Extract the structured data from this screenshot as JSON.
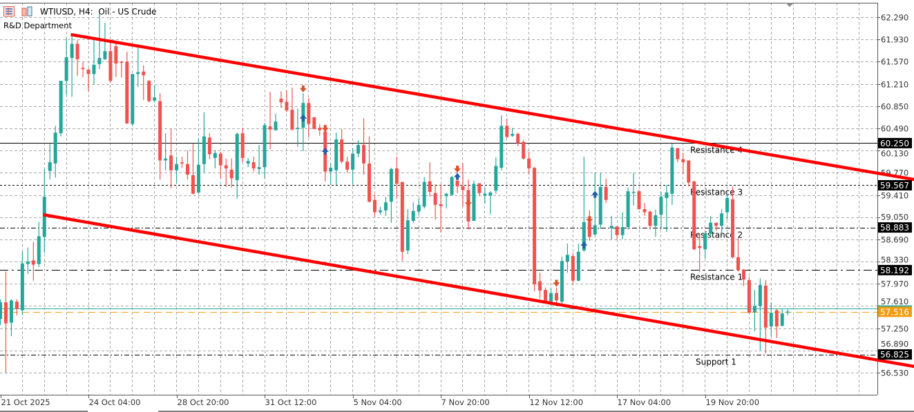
{
  "header": {
    "title": "WTIUSD, H4:  Oil - US Crude",
    "subtitle": "R&D Department",
    "icons": [
      "market-watch-icon",
      "one-click-trading-icon"
    ]
  },
  "colors": {
    "bull": "#26a69a",
    "bear": "#ef5350",
    "trendline": "#ff0000",
    "bid_line": "#f39c12",
    "ask_line": "#26a69a",
    "signal_buy": "#1f5fa8",
    "signal_sell": "#e0502a"
  },
  "chart_data": {
    "type": "candlestick",
    "symbol": "WTIUSD",
    "timeframe": "H4",
    "ylim": [
      56.35,
      62.5
    ],
    "grid": true,
    "y_ticks": [
      "62.290",
      "61.930",
      "61.570",
      "61.210",
      "60.850",
      "60.490",
      "60.130",
      "59.770",
      "59.410",
      "59.050",
      "58.690",
      "58.330",
      "57.970",
      "57.610",
      "57.250",
      "56.890",
      "56.530"
    ],
    "x_tick_labels": [
      "21 Oct 2025",
      "24 Oct 04:00",
      "28 Oct 20:00",
      "31 Oct 12:00",
      "5 Nov 04:00",
      "7 Nov 20:00",
      "12 Nov 12:00",
      "17 Nov 04:00",
      "19 Nov 20:00"
    ],
    "x_tick_every_bars": 16,
    "candles_ohlc": [
      [
        57.4,
        57.72,
        57.3,
        57.67
      ],
      [
        57.67,
        58.17,
        56.53,
        57.33
      ],
      [
        57.34,
        57.72,
        57.12,
        57.7
      ],
      [
        57.68,
        57.72,
        57.46,
        57.56
      ],
      [
        57.54,
        58.49,
        57.46,
        58.3
      ],
      [
        58.29,
        58.56,
        58.13,
        58.33
      ],
      [
        58.35,
        58.65,
        58.02,
        58.28
      ],
      [
        58.29,
        58.97,
        58.24,
        58.74
      ],
      [
        58.73,
        59.83,
        58.47,
        59.38
      ],
      [
        59.8,
        60.24,
        59.66,
        59.94
      ],
      [
        59.92,
        60.53,
        59.69,
        60.42
      ],
      [
        60.41,
        61.26,
        60.36,
        61.26
      ],
      [
        61.26,
        61.95,
        61.03,
        61.64
      ],
      [
        61.63,
        62.01,
        61.0,
        61.86
      ],
      [
        61.86,
        61.92,
        61.34,
        61.61
      ],
      [
        61.47,
        61.56,
        61.32,
        61.45
      ],
      [
        61.44,
        61.46,
        61.09,
        61.37
      ],
      [
        61.37,
        61.92,
        61.2,
        61.52
      ],
      [
        61.53,
        62.35,
        61.45,
        61.63
      ],
      [
        61.61,
        62.2,
        61.6,
        61.74
      ],
      [
        61.74,
        61.92,
        61.23,
        61.26
      ],
      [
        61.82,
        61.86,
        61.32,
        61.54
      ],
      [
        61.57,
        61.58,
        61.31,
        61.55
      ],
      [
        61.57,
        61.73,
        60.56,
        60.57
      ],
      [
        60.56,
        61.37,
        60.53,
        61.37
      ],
      [
        61.37,
        61.8,
        61.16,
        61.4
      ],
      [
        61.41,
        61.51,
        60.95,
        61.35
      ],
      [
        61.26,
        61.27,
        60.91,
        60.93
      ],
      [
        60.94,
        61.19,
        60.91,
        60.99
      ],
      [
        60.93,
        61.06,
        59.66,
        59.97
      ],
      [
        59.97,
        60.41,
        59.81,
        60.0
      ],
      [
        60.05,
        60.48,
        59.52,
        59.81
      ],
      [
        59.81,
        60.03,
        59.6,
        59.91
      ],
      [
        59.94,
        60.03,
        59.85,
        59.92
      ],
      [
        59.91,
        60.13,
        59.66,
        59.74
      ],
      [
        59.73,
        60.24,
        59.42,
        59.43
      ],
      [
        59.45,
        60.33,
        59.42,
        59.9
      ],
      [
        59.91,
        60.75,
        59.77,
        60.36
      ],
      [
        60.34,
        60.41,
        59.99,
        60.07
      ],
      [
        60.01,
        60.14,
        59.84,
        60.09
      ],
      [
        60.08,
        60.11,
        59.68,
        59.89
      ],
      [
        59.89,
        60.0,
        59.54,
        59.84
      ],
      [
        59.82,
        60.0,
        59.53,
        59.68
      ],
      [
        59.65,
        60.42,
        59.35,
        60.4
      ],
      [
        60.41,
        60.5,
        59.94,
        60.01
      ],
      [
        59.92,
        60.01,
        59.86,
        59.96
      ],
      [
        59.94,
        60.03,
        59.79,
        59.84
      ],
      [
        59.83,
        60.22,
        59.74,
        59.86
      ],
      [
        59.86,
        60.58,
        59.68,
        60.54
      ],
      [
        60.52,
        61.08,
        60.15,
        60.47
      ],
      [
        60.46,
        60.73,
        60.45,
        60.6
      ],
      [
        60.97,
        61.09,
        60.82,
        60.91
      ],
      [
        60.92,
        61.1,
        60.75,
        60.78
      ],
      [
        60.79,
        61.15,
        60.45,
        60.47
      ],
      [
        60.48,
        60.81,
        60.19,
        60.5
      ],
      [
        60.5,
        61.06,
        60.12,
        60.9
      ],
      [
        60.9,
        60.98,
        60.34,
        60.56
      ],
      [
        60.67,
        60.67,
        60.47,
        60.48
      ],
      [
        60.5,
        60.56,
        60.37,
        60.46
      ],
      [
        60.44,
        60.48,
        59.63,
        59.79
      ],
      [
        59.79,
        59.92,
        59.57,
        59.85
      ],
      [
        59.81,
        60.42,
        59.57,
        60.31
      ],
      [
        60.31,
        60.48,
        59.92,
        59.95
      ],
      [
        59.95,
        60.03,
        59.77,
        59.82
      ],
      [
        59.82,
        60.17,
        59.58,
        60.08
      ],
      [
        60.08,
        60.3,
        60.02,
        60.22
      ],
      [
        60.22,
        60.65,
        59.74,
        59.92
      ],
      [
        59.92,
        60.36,
        59.29,
        59.3
      ],
      [
        59.33,
        59.42,
        59.05,
        59.13
      ],
      [
        59.13,
        59.22,
        59.09,
        59.16
      ],
      [
        59.16,
        59.38,
        59.07,
        59.29
      ],
      [
        59.3,
        59.85,
        58.96,
        59.83
      ],
      [
        59.84,
        60.03,
        59.35,
        59.59
      ],
      [
        59.62,
        59.62,
        58.34,
        58.49
      ],
      [
        58.51,
        59.18,
        58.45,
        59.0
      ],
      [
        58.99,
        59.29,
        58.96,
        59.15
      ],
      [
        59.14,
        59.35,
        59.08,
        59.25
      ],
      [
        59.22,
        59.7,
        59.19,
        59.62
      ],
      [
        59.63,
        59.94,
        59.38,
        59.46
      ],
      [
        59.44,
        59.58,
        59.01,
        59.25
      ],
      [
        59.26,
        59.58,
        58.8,
        59.23
      ],
      [
        59.39,
        59.44,
        59.19,
        59.43
      ],
      [
        59.41,
        59.72,
        59.4,
        59.7
      ],
      [
        59.64,
        59.86,
        59.44,
        59.55
      ],
      [
        59.55,
        59.92,
        59.22,
        59.49
      ],
      [
        59.49,
        59.66,
        58.85,
        58.98
      ],
      [
        58.99,
        59.64,
        58.99,
        59.59
      ],
      [
        59.6,
        59.6,
        59.39,
        59.44
      ],
      [
        59.4,
        59.53,
        59.27,
        59.43
      ],
      [
        59.4,
        59.47,
        59.1,
        59.45
      ],
      [
        59.48,
        60.02,
        59.43,
        59.88
      ],
      [
        59.85,
        60.7,
        59.81,
        60.53
      ],
      [
        60.53,
        60.65,
        60.33,
        60.35
      ],
      [
        60.37,
        60.5,
        60.35,
        60.4
      ],
      [
        60.4,
        60.42,
        60.2,
        60.25
      ],
      [
        60.27,
        60.3,
        59.98,
        60.0
      ],
      [
        60.0,
        60.11,
        59.74,
        59.84
      ],
      [
        59.85,
        59.86,
        57.85,
        57.96
      ],
      [
        58.01,
        58.15,
        57.73,
        57.86
      ],
      [
        57.87,
        57.91,
        57.65,
        57.68
      ],
      [
        57.68,
        57.91,
        57.61,
        57.82
      ],
      [
        57.82,
        57.91,
        57.65,
        57.7
      ],
      [
        57.68,
        58.41,
        57.61,
        58.34
      ],
      [
        58.33,
        58.62,
        58.15,
        58.44
      ],
      [
        58.42,
        58.47,
        57.95,
        58.02
      ],
      [
        58.02,
        58.62,
        58.01,
        58.49
      ],
      [
        58.51,
        60.03,
        58.49,
        58.97
      ],
      [
        58.97,
        59.16,
        58.67,
        58.73
      ],
      [
        58.77,
        59.77,
        58.75,
        58.92
      ],
      [
        58.93,
        59.77,
        58.86,
        59.54
      ],
      [
        59.54,
        59.68,
        59.28,
        59.33
      ],
      [
        58.87,
        59.07,
        58.69,
        58.91
      ],
      [
        58.9,
        58.9,
        58.69,
        58.76
      ],
      [
        58.76,
        59.13,
        58.69,
        58.89
      ],
      [
        58.89,
        59.53,
        58.85,
        59.47
      ],
      [
        59.45,
        59.77,
        59.24,
        59.46
      ],
      [
        59.47,
        59.49,
        59.17,
        59.18
      ],
      [
        59.18,
        59.28,
        59.07,
        59.13
      ],
      [
        59.14,
        59.16,
        58.85,
        58.91
      ],
      [
        58.91,
        59.17,
        58.73,
        59.08
      ],
      [
        59.09,
        59.46,
        58.85,
        59.38
      ],
      [
        59.36,
        59.57,
        58.81,
        59.45
      ],
      [
        59.43,
        60.24,
        59.25,
        60.18
      ],
      [
        60.17,
        60.17,
        59.94,
        59.99
      ],
      [
        59.99,
        60.09,
        59.75,
        59.94
      ],
      [
        59.97,
        59.97,
        59.55,
        59.61
      ],
      [
        59.63,
        59.64,
        58.52,
        58.53
      ],
      [
        58.58,
        58.78,
        58.16,
        58.55
      ],
      [
        58.53,
        58.8,
        58.38,
        58.78
      ],
      [
        58.78,
        59.07,
        58.74,
        58.96
      ],
      [
        58.96,
        58.96,
        58.83,
        58.91
      ],
      [
        58.91,
        59.18,
        58.74,
        59.11
      ],
      [
        59.13,
        59.42,
        59.01,
        59.36
      ],
      [
        59.34,
        59.55,
        58.38,
        58.4
      ],
      [
        58.4,
        58.71,
        58.17,
        58.19
      ],
      [
        58.2,
        58.21,
        57.93,
        58.04
      ],
      [
        58.03,
        58.08,
        57.5,
        57.5
      ],
      [
        57.51,
        57.87,
        57.2,
        57.61
      ],
      [
        57.61,
        58.06,
        56.89,
        57.95
      ],
      [
        57.94,
        58.03,
        56.84,
        57.26
      ],
      [
        57.28,
        57.67,
        57.12,
        57.5
      ],
      [
        57.54,
        57.56,
        57.09,
        57.28
      ],
      [
        57.29,
        57.57,
        57.28,
        57.49
      ],
      [
        57.5,
        57.56,
        57.46,
        57.52
      ]
    ],
    "levels": [
      {
        "name": "Resistance 4",
        "price": "60.250",
        "style": "solid"
      },
      {
        "name": "Resistance 3",
        "price": "59.567",
        "style": "dotted"
      },
      {
        "name": "Resistance 2",
        "price": "58.883",
        "style": "dash-dot"
      },
      {
        "name": "Resistance 1",
        "price": "58.192",
        "style": "long-dash-dot"
      },
      {
        "name": "Support 1",
        "price": "56.825",
        "style": "dash-dot"
      }
    ],
    "current_bid": "57.516",
    "current_ask": 57.55,
    "trendlines": [
      {
        "from": {
          "bar": 12.8,
          "price": 62.01
        },
        "to": {
          "bar": 166,
          "price": 59.66
        }
      },
      {
        "from": {
          "bar": 7.8,
          "price": 59.09
        },
        "to": {
          "bar": 166,
          "price": 56.63
        }
      }
    ],
    "signals": [
      {
        "bar": 55,
        "type": "sell",
        "price": 61.13
      },
      {
        "bar": 55,
        "type": "buy",
        "price": 60.66
      },
      {
        "bar": 59,
        "type": "sell",
        "price": 60.49
      },
      {
        "bar": 59,
        "type": "buy",
        "price": 60.12
      },
      {
        "bar": 83,
        "type": "sell",
        "price": 59.83
      },
      {
        "bar": 83,
        "type": "buy",
        "price": 59.71
      },
      {
        "bar": 85,
        "type": "sell",
        "price": 59.28
      },
      {
        "bar": 101,
        "type": "sell",
        "price": 57.98
      },
      {
        "bar": 106,
        "type": "buy",
        "price": 58.6
      },
      {
        "bar": 107,
        "type": "sell",
        "price": 59.01
      },
      {
        "bar": 108,
        "type": "buy",
        "price": 59.42
      }
    ]
  }
}
